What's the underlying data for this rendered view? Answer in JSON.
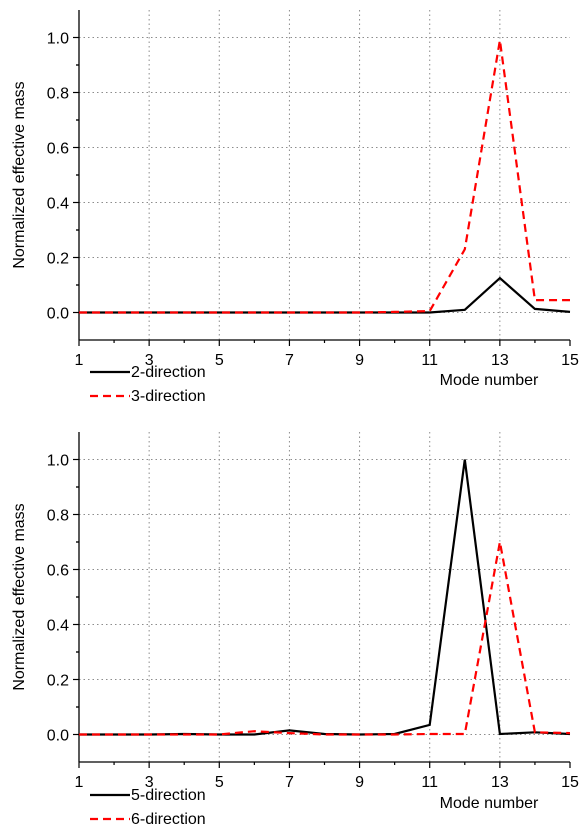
{
  "chart_data": [
    {
      "type": "line",
      "title": "",
      "xlabel": "Mode number",
      "ylabel": "Normalized effective mass",
      "xlim": [
        1,
        15
      ],
      "ylim": [
        -0.1,
        1.1
      ],
      "xticks": [
        "1",
        "3",
        "5",
        "7",
        "9",
        "11",
        "13",
        "15"
      ],
      "yticks": [
        "0.0",
        "0.2",
        "0.4",
        "0.6",
        "0.8",
        "1.0"
      ],
      "grid": true,
      "legend_position": "bottom-left",
      "x": [
        1,
        2,
        3,
        4,
        5,
        6,
        7,
        8,
        9,
        10,
        11,
        12,
        13,
        14,
        15
      ],
      "series": [
        {
          "name": "2-direction",
          "color": "#000000",
          "dash": "solid",
          "values": [
            0,
            0,
            0,
            0,
            0,
            0,
            0,
            0,
            0,
            0,
            0,
            0.01,
            0.125,
            0.013,
            0.002
          ]
        },
        {
          "name": "3-direction",
          "color": "#ff0000",
          "dash": "dashed",
          "values": [
            0,
            0,
            0,
            0,
            0,
            0,
            0,
            0,
            0,
            0.002,
            0.005,
            0.23,
            0.99,
            0.045,
            0.045
          ]
        }
      ]
    },
    {
      "type": "line",
      "title": "",
      "xlabel": "Mode number",
      "ylabel": "Normalized effective mass",
      "xlim": [
        1,
        15
      ],
      "ylim": [
        -0.1,
        1.1
      ],
      "xticks": [
        "1",
        "3",
        "5",
        "7",
        "9",
        "11",
        "13",
        "15"
      ],
      "yticks": [
        "0.0",
        "0.2",
        "0.4",
        "0.6",
        "0.8",
        "1.0"
      ],
      "grid": true,
      "legend_position": "bottom-left",
      "x": [
        1,
        2,
        3,
        4,
        5,
        6,
        7,
        8,
        9,
        10,
        11,
        12,
        13,
        14,
        15
      ],
      "series": [
        {
          "name": "5-direction",
          "color": "#000000",
          "dash": "solid",
          "values": [
            0,
            0,
            0,
            0.002,
            0,
            0,
            0.015,
            0.002,
            0,
            0.002,
            0.035,
            1.0,
            0.002,
            0.008,
            0.002
          ]
        },
        {
          "name": "6-direction",
          "color": "#ff0000",
          "dash": "dashed",
          "values": [
            0,
            0,
            0,
            0,
            0,
            0.012,
            0.005,
            0,
            0,
            0,
            0.002,
            0.002,
            0.7,
            0.008,
            0.005
          ]
        }
      ]
    }
  ]
}
